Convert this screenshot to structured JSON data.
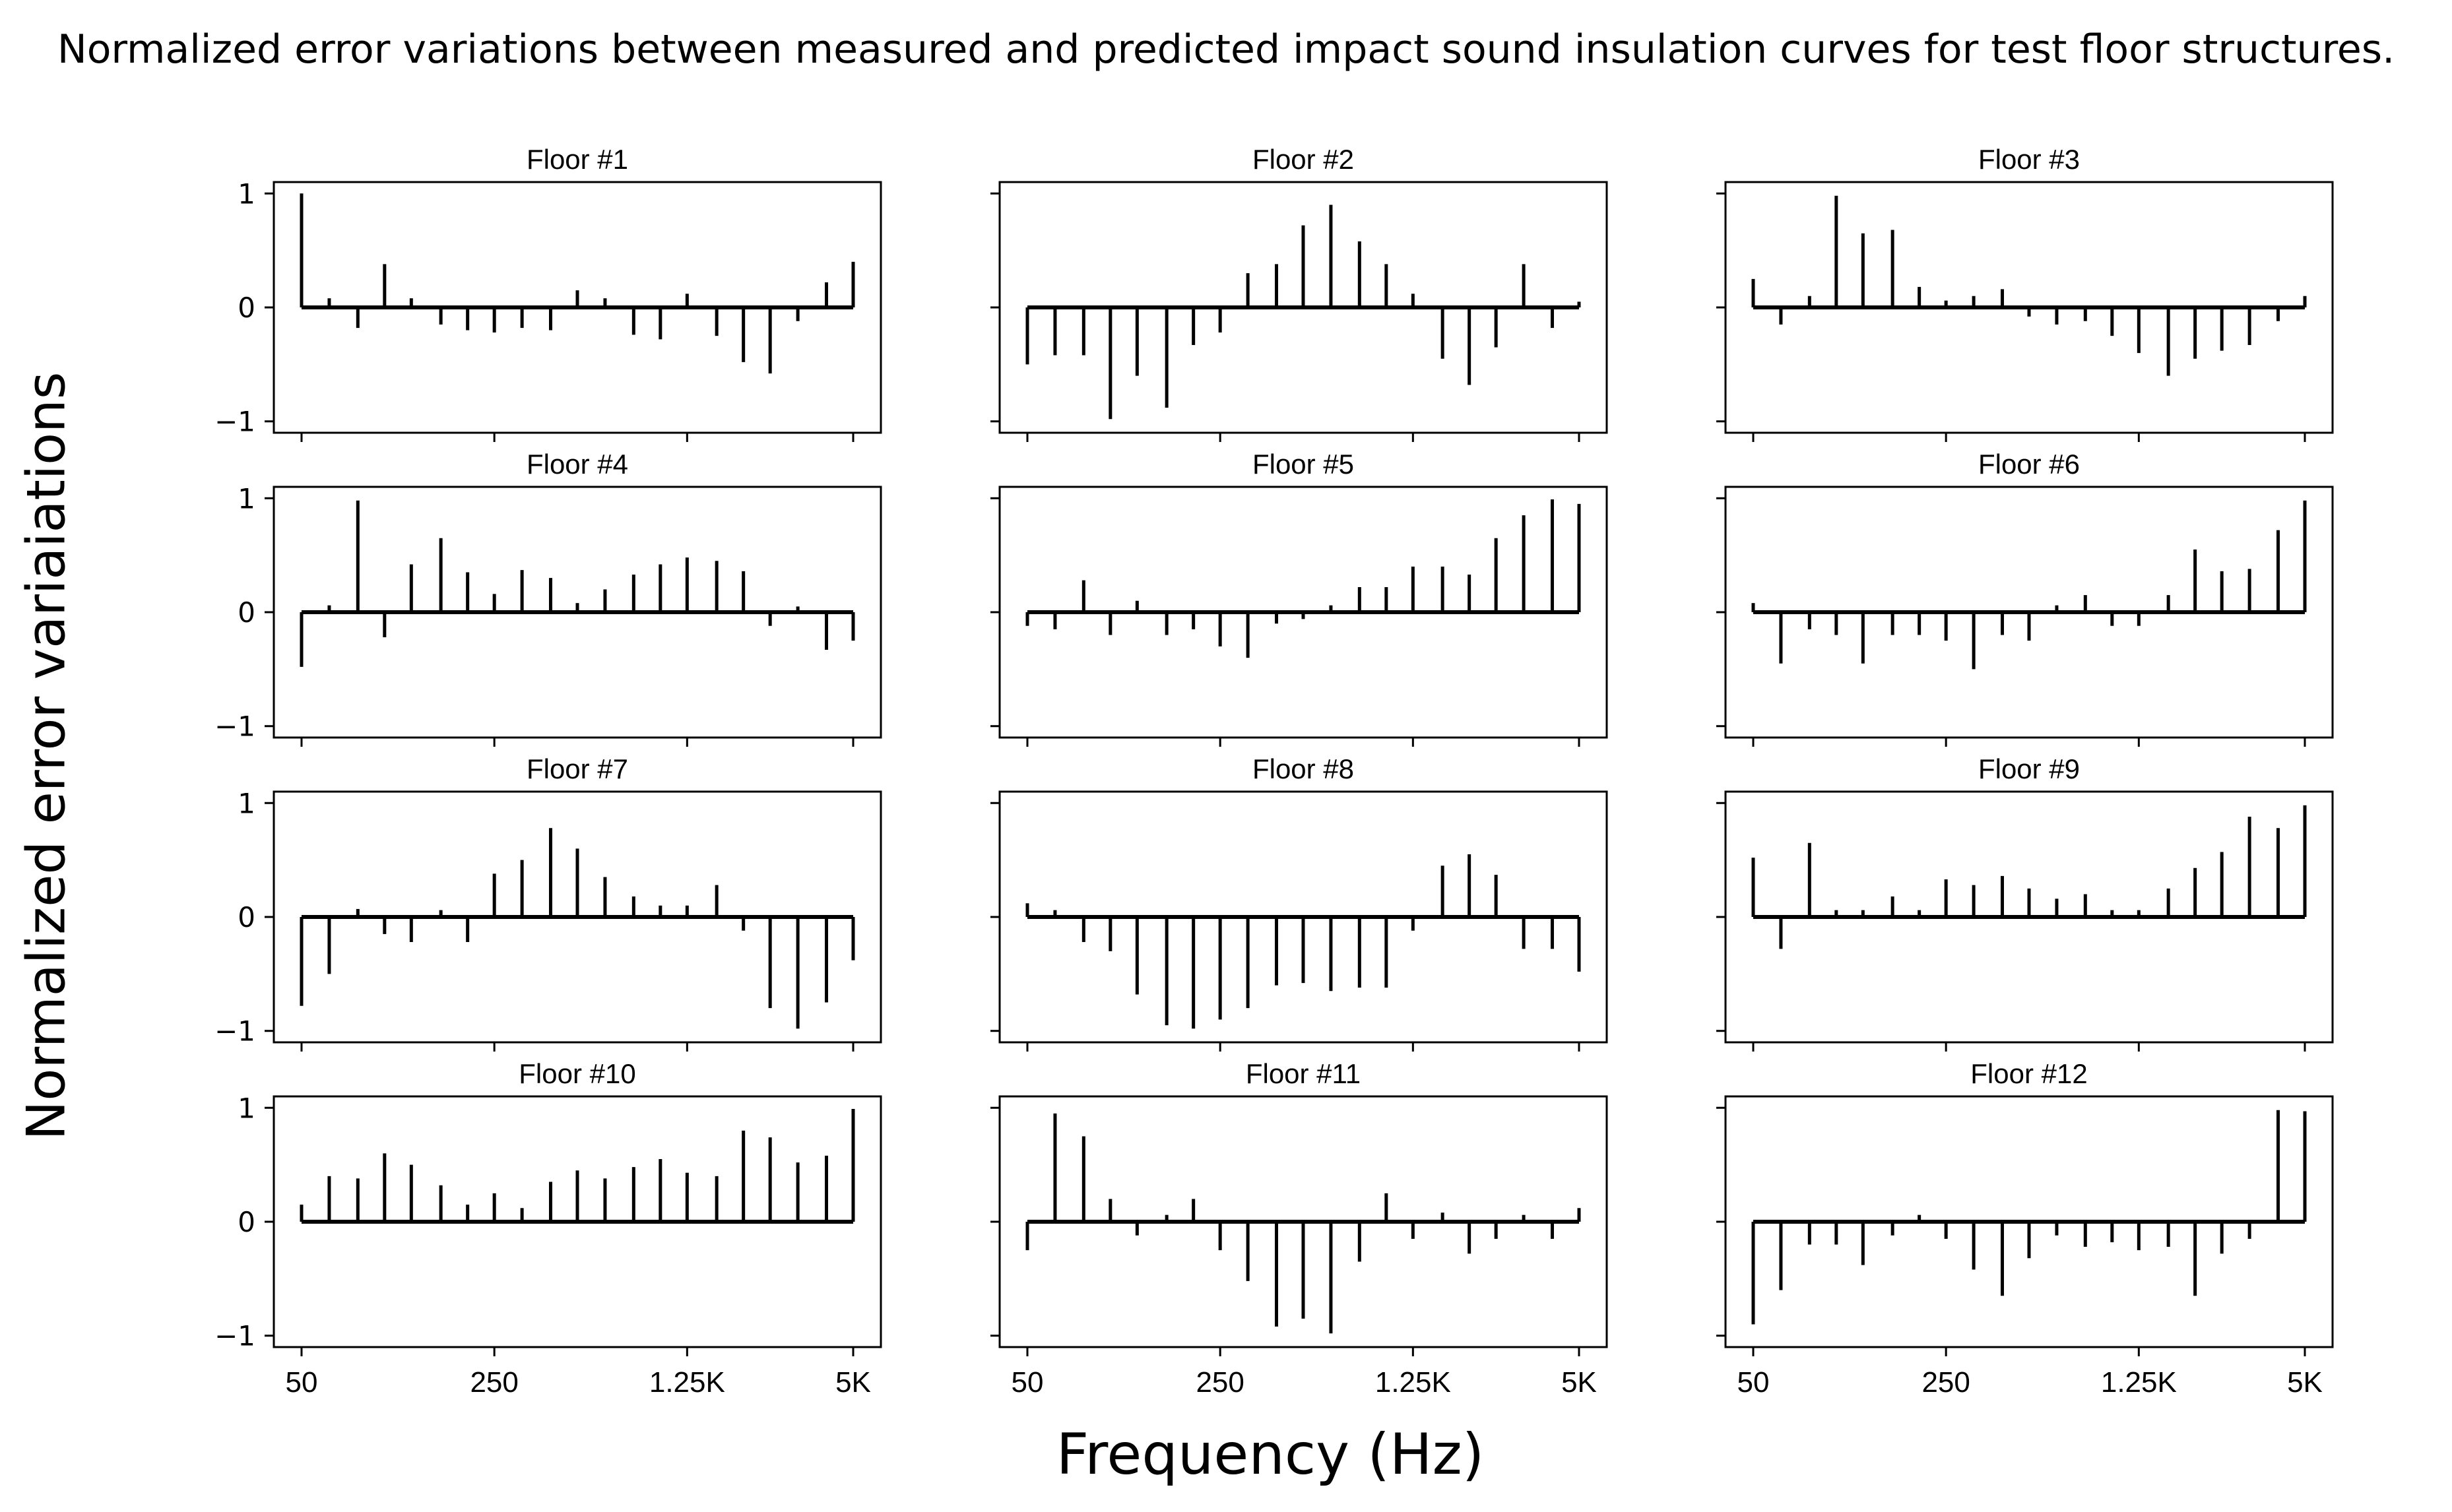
{
  "title": "Normalized error variations between measured and predicted impact sound insulation curves for test floor structures.",
  "chart_data": {
    "type": "stem",
    "xlabel": "Frequency (Hz)",
    "ylabel": "Normalized error variaiations",
    "ylim": [
      -1.1,
      1.1
    ],
    "yticks": [
      1,
      0,
      -1
    ],
    "ytick_labels": [
      "1",
      "0",
      "−1"
    ],
    "x_scale": "one-third-octave bands",
    "frequencies": [
      50,
      63,
      80,
      100,
      125,
      160,
      200,
      250,
      315,
      400,
      500,
      630,
      800,
      1000,
      1250,
      1600,
      2000,
      2500,
      3150,
      4000,
      5000
    ],
    "xticks": [
      50,
      250,
      1250,
      5000
    ],
    "xtick_labels": [
      "50",
      "250",
      "1.25K",
      "5K"
    ],
    "line_color": "#000000",
    "panels": [
      {
        "title": "Floor #1",
        "values": [
          1.0,
          0.08,
          -0.18,
          0.38,
          0.08,
          -0.15,
          -0.2,
          -0.22,
          -0.18,
          -0.2,
          0.15,
          0.08,
          -0.24,
          -0.28,
          0.12,
          -0.25,
          -0.48,
          -0.58,
          -0.12,
          0.22,
          0.4
        ]
      },
      {
        "title": "Floor #2",
        "values": [
          -0.5,
          -0.42,
          -0.42,
          -0.98,
          -0.6,
          -0.88,
          -0.33,
          -0.22,
          0.3,
          0.38,
          0.72,
          0.9,
          0.58,
          0.38,
          0.12,
          -0.45,
          -0.68,
          -0.35,
          0.38,
          -0.18,
          0.05
        ]
      },
      {
        "title": "Floor #3",
        "values": [
          0.25,
          -0.15,
          0.1,
          0.98,
          0.65,
          0.68,
          0.18,
          0.06,
          0.1,
          0.16,
          -0.08,
          -0.15,
          -0.12,
          -0.25,
          -0.4,
          -0.6,
          -0.45,
          -0.38,
          -0.33,
          -0.12,
          0.1
        ]
      },
      {
        "title": "Floor #4",
        "values": [
          -0.48,
          0.06,
          0.98,
          -0.22,
          0.42,
          0.65,
          0.35,
          0.16,
          0.37,
          0.3,
          0.08,
          0.2,
          0.33,
          0.42,
          0.48,
          0.45,
          0.36,
          -0.12,
          0.05,
          -0.33,
          -0.25
        ]
      },
      {
        "title": "Floor #5",
        "values": [
          -0.12,
          -0.15,
          0.28,
          -0.2,
          0.1,
          -0.2,
          -0.15,
          -0.3,
          -0.4,
          -0.1,
          -0.06,
          0.06,
          0.22,
          0.22,
          0.4,
          0.4,
          0.33,
          0.65,
          0.85,
          0.99,
          0.95
        ]
      },
      {
        "title": "Floor #6",
        "values": [
          0.08,
          -0.45,
          -0.15,
          -0.2,
          -0.45,
          -0.2,
          -0.2,
          -0.25,
          -0.5,
          -0.2,
          -0.25,
          0.06,
          0.15,
          -0.12,
          -0.12,
          0.15,
          0.55,
          0.36,
          0.38,
          0.72,
          0.98
        ]
      },
      {
        "title": "Floor #7",
        "values": [
          -0.78,
          -0.5,
          0.07,
          -0.15,
          -0.22,
          0.06,
          -0.22,
          0.38,
          0.5,
          0.78,
          0.6,
          0.35,
          0.18,
          0.1,
          0.1,
          0.28,
          -0.12,
          -0.8,
          -0.98,
          -0.75,
          -0.38
        ]
      },
      {
        "title": "Floor #8",
        "values": [
          0.12,
          0.06,
          -0.22,
          -0.3,
          -0.68,
          -0.95,
          -0.98,
          -0.9,
          -0.8,
          -0.6,
          -0.58,
          -0.65,
          -0.62,
          -0.62,
          -0.12,
          0.45,
          0.55,
          0.37,
          -0.28,
          -0.28,
          -0.48
        ]
      },
      {
        "title": "Floor #9",
        "values": [
          0.52,
          -0.28,
          0.65,
          0.06,
          0.06,
          0.18,
          0.06,
          0.33,
          0.28,
          0.36,
          0.25,
          0.16,
          0.2,
          0.06,
          0.06,
          0.25,
          0.43,
          0.57,
          0.88,
          0.78,
          0.98
        ]
      },
      {
        "title": "Floor #10",
        "values": [
          0.15,
          0.4,
          0.38,
          0.6,
          0.5,
          0.32,
          0.15,
          0.25,
          0.12,
          0.35,
          0.45,
          0.38,
          0.48,
          0.55,
          0.43,
          0.4,
          0.8,
          0.74,
          0.52,
          0.58,
          0.99
        ]
      },
      {
        "title": "Floor #11",
        "values": [
          -0.25,
          0.95,
          0.75,
          0.2,
          -0.12,
          0.06,
          0.2,
          -0.25,
          -0.52,
          -0.92,
          -0.85,
          -0.98,
          -0.35,
          0.25,
          -0.15,
          0.08,
          -0.28,
          -0.15,
          0.06,
          -0.15,
          0.12
        ]
      },
      {
        "title": "Floor #12",
        "values": [
          -0.9,
          -0.6,
          -0.2,
          -0.2,
          -0.38,
          -0.12,
          0.06,
          -0.15,
          -0.42,
          -0.65,
          -0.32,
          -0.12,
          -0.22,
          -0.18,
          -0.25,
          -0.22,
          -0.65,
          -0.28,
          -0.15,
          0.98,
          0.97
        ]
      }
    ]
  }
}
